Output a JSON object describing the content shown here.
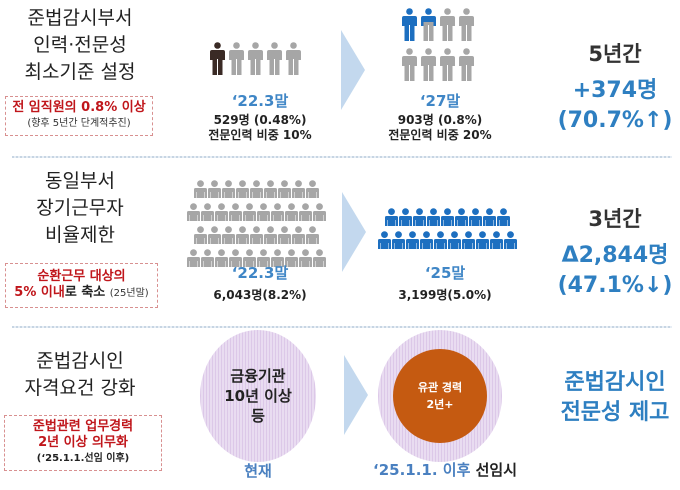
{
  "colors": {
    "accent_blue": "#2e7fc1",
    "red": "#c0161b",
    "gray_person": "#a6a6a6",
    "dark_person": "#3a2a25",
    "blue_person": "#1d6fc0",
    "orange": "#c55a11",
    "purple": "#e2d2ec"
  },
  "row1": {
    "title": [
      "준법감시부서",
      "인력·전문성",
      "최소기준 설정"
    ],
    "req": "전 임직원의 0.8%  이상",
    "req_note": "(향후 5년간 단계적추진)",
    "before": {
      "period": "‘22.3말",
      "line1": "529명 (0.48%)",
      "line2": "전문인력 비중 10%",
      "icons": {
        "dark": 1,
        "gray": 4
      }
    },
    "after": {
      "period": "‘27말",
      "line1": "903명 (0.8%)",
      "line2": "전문인력 비중 20%",
      "icons": {
        "blue": 1.5,
        "total": 8
      }
    },
    "summary": {
      "span": "5년간",
      "change": "+374명",
      "pct": "(70.7%↑)"
    }
  },
  "row2": {
    "title": [
      "동일부서",
      "장기근무자",
      "비율제한"
    ],
    "req_red": "순환근무 대상의",
    "req_red2": "5% 이내",
    "req_black": "로 축소",
    "req_note": "(25년말)",
    "before": {
      "period": "‘22.3말",
      "line1": "6,043명(8.2%)",
      "icon_rows": [
        9,
        10,
        9,
        10
      ]
    },
    "after": {
      "period": "‘25말",
      "line1": "3,199명(5.0%)",
      "icon_rows": [
        9,
        10
      ]
    },
    "summary": {
      "span": "3년간",
      "change": "Δ2,844명",
      "pct": "(47.1%↓)"
    }
  },
  "row3": {
    "title": [
      "준법감시인",
      "자격요건 강화"
    ],
    "req": [
      "준법관련 업무경력",
      "2년 이상 의무화"
    ],
    "req_note": "(‘25.1.1.선임 이후)",
    "before": {
      "circle": [
        "금융기관",
        "10년 이상",
        "등"
      ],
      "label": "현재"
    },
    "after": {
      "circle": [
        "유관 경력",
        "2년+"
      ],
      "label_blue": "‘25.1.1. 이후",
      "label_black": " 선임시"
    },
    "summary": [
      "준법감시인",
      "전문성 제고"
    ]
  }
}
